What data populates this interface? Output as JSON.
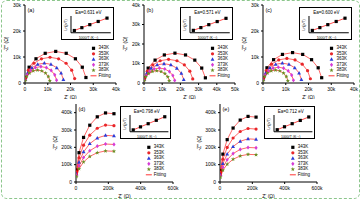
{
  "chart_data": [
    {
      "type": "scatter",
      "title": "(a)",
      "x_label": "Z' (Ω)",
      "y_label": "-Z'' (Ω)",
      "xlim": [
        0,
        40000
      ],
      "xticks": [
        0,
        {
          "value": 10000,
          "label": "10k"
        },
        {
          "value": 20000,
          "label": "20k"
        },
        {
          "value": 30000,
          "label": "30k"
        },
        {
          "value": 40000,
          "label": "40k"
        }
      ],
      "ylim": [
        0,
        30000
      ],
      "yticks": [
        0,
        {
          "value": 10000,
          "label": "10k"
        },
        {
          "value": 20000,
          "label": "20k"
        },
        {
          "value": 30000,
          "label": "30k"
        }
      ],
      "legend": "right",
      "series": [
        {
          "name": "343K",
          "color": "#000000",
          "marker": "square",
          "x": [
            205,
            1809,
            4833,
            8883,
            13500,
            18117,
            22167,
            25191,
            26784
          ],
          "values": [
            2106,
            6075,
            9315,
            11421,
            12150,
            11421,
            9315,
            6075,
            2106
          ]
        },
        {
          "name": "353K",
          "color": "#e8262a",
          "marker": "circle",
          "x": [
            167,
            1474,
            3938,
            7238,
            11000,
            14762,
            18062,
            20526,
            21824
          ],
          "values": [
            1716,
            4950,
            7590,
            9306,
            9900,
            9306,
            7590,
            4950,
            1716
          ]
        },
        {
          "name": "363K",
          "color": "#2b3bd9",
          "marker": "triangle",
          "x": [
            129,
            1139,
            3043,
            5593,
            8500,
            11407,
            13957,
            15861,
            16864
          ],
          "values": [
            1326,
            3825,
            5865,
            7191,
            7650,
            7191,
            5865,
            3825,
            1326
          ]
        },
        {
          "name": "373K",
          "color": "#d63bd6",
          "marker": "diamond",
          "x": [
            106,
            938,
            2506,
            4606,
            7000,
            9394,
            11494,
            13062,
            13888
          ],
          "values": [
            1092,
            3150,
            4830,
            5922,
            6300,
            5922,
            4830,
            3150,
            1092
          ]
        },
        {
          "name": "383K",
          "color": "#6b8e23",
          "marker": "star",
          "x": [
            84,
            737,
            1969,
            3619,
            5500,
            7381,
            9031,
            10263,
            10912
          ],
          "values": [
            858,
            2475,
            3795,
            4653,
            4950,
            4653,
            3795,
            2475,
            858
          ]
        }
      ],
      "fit": {
        "name": "Fitting",
        "color": "#ff0000",
        "line_style": "solid"
      },
      "inset": {
        "type": "line",
        "annotation": "Ea=0.631 eV",
        "x_label": "1000/T (K⁻¹)",
        "y_label": "Ln(ρ/T)",
        "x": [
          2.611,
          2.681,
          2.755,
          2.833,
          2.915
        ],
        "values": [
          4.0,
          4.51,
          5.05,
          5.62,
          6.22
        ],
        "xlim": [
          2.58,
          2.95
        ],
        "ylim": [
          3.6,
          6.6
        ],
        "tick_labels": false,
        "color": "#000000",
        "marker": "square"
      }
    },
    {
      "type": "scatter",
      "title": "(b)",
      "x_label": "Z' (Ω)",
      "y_label": "-Z'' (Ω)",
      "xlim": [
        0,
        50000
      ],
      "xticks": [
        0,
        {
          "value": 10000,
          "label": "10k"
        },
        {
          "value": 20000,
          "label": "20k"
        },
        {
          "value": 30000,
          "label": "30k"
        },
        {
          "value": 40000,
          "label": "40k"
        },
        {
          "value": 50000,
          "label": "50k"
        }
      ],
      "ylim": [
        0,
        40000
      ],
      "yticks": [
        0,
        {
          "value": 10000,
          "label": "10k"
        },
        {
          "value": 20000,
          "label": "20k"
        },
        {
          "value": 30000,
          "label": "30k"
        },
        {
          "value": 40000,
          "label": "40k"
        }
      ],
      "legend": "right",
      "series": [
        {
          "name": "343K",
          "color": "#000000",
          "marker": "square",
          "x": [
            258,
            2278,
            6086,
            11186,
            17000,
            22814,
            27914,
            31722,
            33728
          ],
          "values": [
            2652,
            7650,
            11730,
            14382,
            15300,
            14382,
            11730,
            7650,
            2652
          ]
        },
        {
          "name": "353K",
          "color": "#e8262a",
          "marker": "circle",
          "x": [
            205,
            1809,
            4833,
            8883,
            13500,
            18117,
            22167,
            25191,
            26784
          ],
          "values": [
            2106,
            6075,
            9315,
            11421,
            12150,
            11421,
            9315,
            6075,
            2106
          ]
        },
        {
          "name": "363K",
          "color": "#2b3bd9",
          "marker": "triangle",
          "x": [
            167,
            1474,
            3938,
            7238,
            11000,
            14762,
            18062,
            20526,
            21824
          ],
          "values": [
            1716,
            4950,
            7590,
            9306,
            9900,
            9306,
            7590,
            4950,
            1716
          ]
        },
        {
          "name": "373K",
          "color": "#d63bd6",
          "marker": "diamond",
          "x": [
            129,
            1139,
            3043,
            5593,
            8500,
            11407,
            13957,
            15861,
            16864
          ],
          "values": [
            1326,
            3825,
            5865,
            7191,
            7650,
            7191,
            5865,
            3825,
            1326
          ]
        },
        {
          "name": "383K",
          "color": "#6b8e23",
          "marker": "star",
          "x": [
            106,
            938,
            2506,
            4606,
            7000,
            9394,
            11494,
            13062,
            13888
          ],
          "values": [
            1092,
            3150,
            4830,
            5922,
            6300,
            5922,
            4830,
            3150,
            1092
          ]
        }
      ],
      "fit": {
        "name": "Fitting",
        "color": "#ff0000",
        "line_style": "solid"
      },
      "inset": {
        "type": "line",
        "annotation": "Ea=0.571 eV",
        "x_label": "1000/T (K⁻¹)",
        "y_label": "Ln(ρ/T)",
        "x": [
          2.611,
          2.681,
          2.755,
          2.833,
          2.915
        ],
        "values": [
          4.2,
          4.66,
          5.15,
          5.67,
          6.21
        ],
        "xlim": [
          2.58,
          2.95
        ],
        "ylim": [
          3.8,
          6.6
        ],
        "tick_labels": false,
        "color": "#000000",
        "marker": "square"
      }
    },
    {
      "type": "scatter",
      "title": "(c)",
      "x_label": "Z' (Ω)",
      "y_label": "-Z'' (Ω)",
      "xlim": [
        0,
        40000
      ],
      "xticks": [
        0,
        {
          "value": 10000,
          "label": "10k"
        },
        {
          "value": 20000,
          "label": "20k"
        },
        {
          "value": 30000,
          "label": "30k"
        },
        {
          "value": 40000,
          "label": "40k"
        }
      ],
      "ylim": [
        0,
        30000
      ],
      "yticks": [
        0,
        {
          "value": 10000,
          "label": "10k"
        },
        {
          "value": 20000,
          "label": "20k"
        },
        {
          "value": 30000,
          "label": "30k"
        }
      ],
      "legend": "right",
      "series": [
        {
          "name": "343K",
          "color": "#000000",
          "marker": "square",
          "x": [
            198,
            1742,
            4654,
            8554,
            13000,
            17446,
            21346,
            24258,
            25792
          ],
          "values": [
            2028,
            5850,
            8970,
            10998,
            11700,
            10998,
            8970,
            5850,
            2028
          ]
        },
        {
          "name": "353K",
          "color": "#e8262a",
          "marker": "circle",
          "x": [
            160,
            1407,
            3759,
            6909,
            10500,
            14091,
            17241,
            19593,
            20832
          ],
          "values": [
            1638,
            4725,
            7245,
            8883,
            9450,
            8883,
            7245,
            4725,
            1638
          ]
        },
        {
          "name": "363K",
          "color": "#2b3bd9",
          "marker": "triangle",
          "x": [
            129,
            1139,
            3043,
            5593,
            8500,
            11407,
            13957,
            15861,
            16864
          ],
          "values": [
            1326,
            3825,
            5865,
            7191,
            7650,
            7191,
            5865,
            3825,
            1326
          ]
        },
        {
          "name": "373K",
          "color": "#d63bd6",
          "marker": "diamond",
          "x": [
            103,
            905,
            2417,
            4442,
            6750,
            9059,
            11084,
            12596,
            13392
          ],
          "values": [
            1053,
            3038,
            4658,
            5711,
            6075,
            5711,
            4658,
            3038,
            1053
          ]
        },
        {
          "name": "383K",
          "color": "#6b8e23",
          "marker": "star",
          "x": [
            84,
            737,
            1969,
            3619,
            5500,
            7381,
            9031,
            10263,
            10912
          ],
          "values": [
            858,
            2475,
            3795,
            4653,
            4950,
            4653,
            3795,
            2475,
            858
          ]
        }
      ],
      "fit": {
        "name": "Fitting",
        "color": "#ff0000",
        "line_style": "solid"
      },
      "inset": {
        "type": "line",
        "annotation": "Ea=0.600 eV",
        "x_label": "1000/T (K⁻¹)",
        "y_label": "Ln(ρ/T)",
        "x": [
          2.611,
          2.681,
          2.755,
          2.833,
          2.915
        ],
        "values": [
          4.1,
          4.59,
          5.1,
          5.65,
          6.22
        ],
        "xlim": [
          2.58,
          2.95
        ],
        "ylim": [
          3.7,
          6.6
        ],
        "tick_labels": false,
        "color": "#000000",
        "marker": "square"
      }
    },
    {
      "type": "scatter",
      "title": "(d)",
      "x_label": "Z' (Ω)",
      "y_label": "-Z'' (Ω)",
      "xlim": [
        0,
        600000
      ],
      "xticks": [
        0,
        {
          "value": 200000,
          "label": "200k"
        },
        {
          "value": 400000,
          "label": "400k"
        },
        {
          "value": 600000,
          "label": "600k"
        }
      ],
      "ylim": [
        0,
        450000
      ],
      "yticks": [
        0,
        {
          "value": 100000,
          "label": "100k"
        },
        {
          "value": 200000,
          "label": "200k"
        },
        {
          "value": 300000,
          "label": "300k"
        },
        {
          "value": 400000,
          "label": "400k"
        }
      ],
      "legend": "right",
      "series": [
        {
          "name": "343K",
          "color": "#000000",
          "marker": "square",
          "x": [
            3000,
            18800,
            46800,
            85200,
            131600,
            182600,
            234800
          ],
          "values": [
            69600,
            169200,
            257200,
            327600,
            376000,
            398400,
            394000
          ]
        },
        {
          "name": "353K",
          "color": "#e8262a",
          "marker": "circle",
          "x": [
            3000,
            18800,
            46800,
            85200,
            131600,
            182600,
            234800
          ],
          "values": [
            57420,
            139590,
            212190,
            270270,
            310200,
            328680,
            325050
          ]
        },
        {
          "name": "363K",
          "color": "#2b3bd9",
          "marker": "triangle",
          "x": [
            3000,
            18800,
            46800,
            85200,
            131600,
            182600,
            234800
          ],
          "values": [
            46980,
            114210,
            173610,
            221130,
            253800,
            268920,
            265950
          ]
        },
        {
          "name": "373K",
          "color": "#d63bd6",
          "marker": "diamond",
          "x": [
            3000,
            18800,
            46800,
            85200,
            131600,
            182600,
            234800
          ],
          "values": [
            38280,
            93060,
            141460,
            180180,
            206800,
            219120,
            216700
          ]
        },
        {
          "name": "383K",
          "color": "#6b8e23",
          "marker": "star",
          "x": [
            3000,
            18800,
            46800,
            85200,
            131600,
            182600,
            234800
          ],
          "values": [
            31320,
            76140,
            115740,
            147420,
            169200,
            179280,
            177300
          ]
        }
      ],
      "fit": {
        "name": "Fitting",
        "color": "#ff0000",
        "line_style": "solid"
      },
      "inset": {
        "type": "line",
        "annotation": "Ea=0.798 eV",
        "x_label": "1000/T (K⁻¹)",
        "y_label": "Ln(ρ/T)",
        "x": [
          2.611,
          2.681,
          2.755,
          2.833,
          2.915
        ],
        "values": [
          7.0,
          7.65,
          8.33,
          9.06,
          9.82
        ],
        "xlim": [
          2.58,
          2.95
        ],
        "ylim": [
          6.6,
          10.2
        ],
        "tick_labels": false,
        "color": "#000000",
        "marker": "square"
      }
    },
    {
      "type": "scatter",
      "title": "(e)",
      "x_label": "Z' (Ω)",
      "y_label": "-Z'' (Ω)",
      "xlim": [
        0,
        600000
      ],
      "xticks": [
        0,
        {
          "value": 200000,
          "label": "200k"
        },
        {
          "value": 400000,
          "label": "400k"
        },
        {
          "value": 600000,
          "label": "600k"
        }
      ],
      "ylim": [
        0,
        450000
      ],
      "yticks": [
        0,
        {
          "value": 100000,
          "label": "100k"
        },
        {
          "value": 200000,
          "label": "200k"
        },
        {
          "value": 300000,
          "label": "300k"
        },
        {
          "value": 400000,
          "label": "400k"
        }
      ],
      "legend": "right",
      "series": [
        {
          "name": "343K",
          "color": "#000000",
          "marker": "square",
          "x": [
            2850,
            17860,
            44460,
            80940,
            125020,
            173470,
            223060
          ],
          "values": [
            66120,
            160740,
            244340,
            311220,
            357200,
            378480,
            374300
          ]
        },
        {
          "name": "353K",
          "color": "#e8262a",
          "marker": "circle",
          "x": [
            2850,
            17860,
            44460,
            80940,
            125020,
            173470,
            223060
          ],
          "values": [
            53940,
            131130,
            199330,
            253890,
            291400,
            308760,
            305350
          ]
        },
        {
          "name": "363K",
          "color": "#2b3bd9",
          "marker": "triangle",
          "x": [
            2850,
            17860,
            44460,
            80940,
            125020,
            173470,
            223060
          ],
          "values": [
            43500,
            105750,
            160750,
            204750,
            235000,
            249000,
            246250
          ]
        },
        {
          "name": "373K",
          "color": "#d63bd6",
          "marker": "diamond",
          "x": [
            2850,
            17860,
            44460,
            80940,
            125020,
            173470,
            223060
          ],
          "values": [
            34800,
            84600,
            128600,
            163800,
            188000,
            199200,
            197000
          ]
        },
        {
          "name": "383K",
          "color": "#6b8e23",
          "marker": "star",
          "x": [
            2850,
            17860,
            44460,
            80940,
            125020,
            173470,
            223060
          ],
          "values": [
            27840,
            67680,
            102880,
            131040,
            150400,
            159360,
            157600
          ]
        }
      ],
      "fit": {
        "name": "Fitting",
        "color": "#ff0000",
        "line_style": "solid"
      },
      "inset": {
        "type": "line",
        "annotation": "Ea=0.712 eV",
        "x_label": "1000/T (K⁻¹)",
        "y_label": "Ln(ρ/T)",
        "x": [
          2.611,
          2.681,
          2.755,
          2.833,
          2.915
        ],
        "values": [
          6.8,
          7.38,
          7.99,
          8.63,
          9.31
        ],
        "xlim": [
          2.58,
          2.95
        ],
        "ylim": [
          6.4,
          9.7
        ],
        "tick_labels": false,
        "color": "#000000",
        "marker": "square"
      }
    }
  ]
}
